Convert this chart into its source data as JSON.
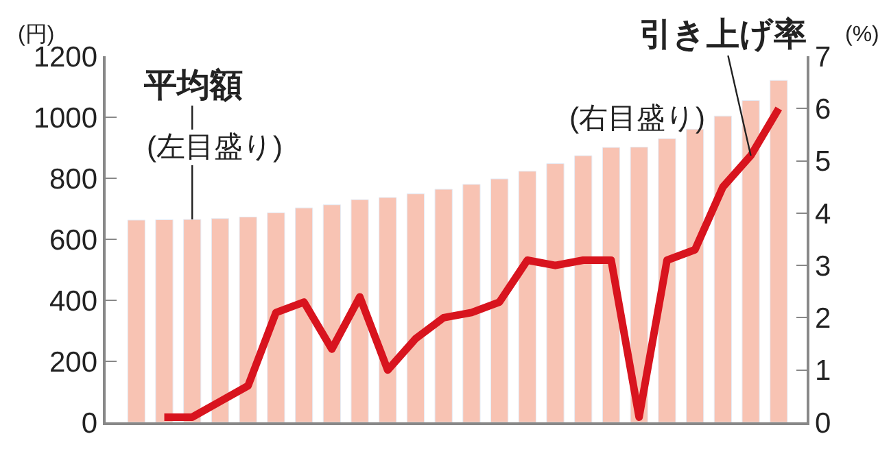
{
  "chart_data": {
    "type": "bar",
    "categories": [
      null,
      null,
      null,
      null,
      null,
      null,
      null,
      null,
      null,
      null,
      null,
      null,
      null,
      null,
      null,
      null,
      null,
      null,
      null,
      null,
      null,
      null,
      null,
      null
    ],
    "series": [
      {
        "name": "平均額",
        "color": "#f8c3b3",
        "values": [
          663,
          664,
          665,
          668,
          673,
          687,
          703,
          713,
          730,
          737,
          749,
          764,
          780,
          798,
          823,
          848,
          874,
          901,
          902,
          930,
          961,
          1004,
          1055,
          1121
        ]
      },
      {
        "name": "引き上げ率",
        "type": "line",
        "axis": "y2",
        "color": "#d8141e",
        "values": [
          null,
          0.1,
          0.1,
          0.4,
          0.7,
          2.1,
          2.3,
          1.4,
          2.4,
          1.0,
          1.6,
          2.0,
          2.1,
          2.3,
          3.1,
          3.0,
          3.1,
          3.1,
          0.1,
          3.1,
          3.3,
          4.5,
          5.1,
          6.0
        ]
      }
    ],
    "annotations": [
      "(左目盛り)",
      "(右目盛り)"
    ],
    "ylabel": "(円)",
    "y2label": "(%)",
    "ylim": [
      0,
      1200
    ],
    "yticks": [
      0,
      200,
      400,
      600,
      800,
      1000,
      1200
    ],
    "y2lim": [
      0,
      7
    ],
    "y2ticks": [
      0,
      1,
      2,
      3,
      4,
      5,
      6,
      7
    ]
  }
}
